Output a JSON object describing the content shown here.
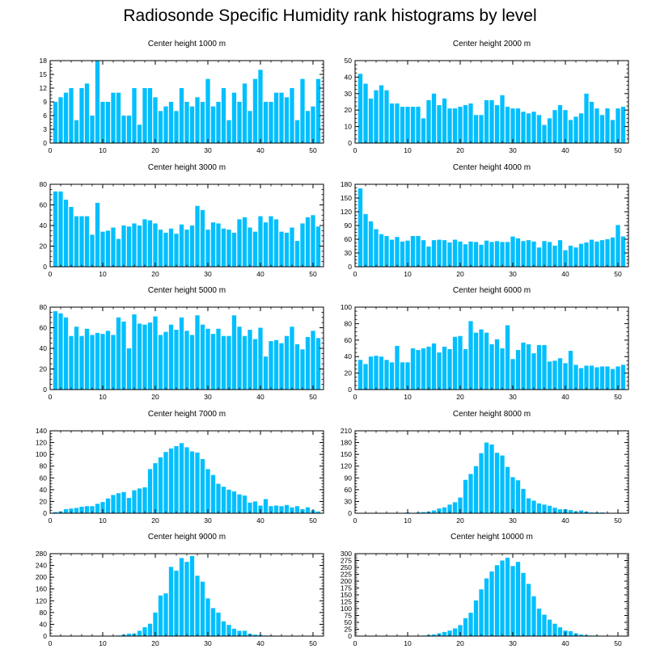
{
  "title": "Radiosonde Specific Humidity rank histograms by level",
  "colors": {
    "bar": "#00BFFF",
    "axis": "#000000"
  },
  "chart_data": [
    {
      "type": "bar",
      "title": "Center height 1000 m",
      "xlim": [
        0,
        52
      ],
      "xticks": [
        0,
        10,
        20,
        30,
        40,
        50
      ],
      "ylim": [
        0,
        18
      ],
      "yticks": [
        0,
        3,
        6,
        9,
        12,
        15,
        18
      ],
      "values": [
        9,
        10,
        11,
        12,
        5,
        12,
        13,
        6,
        18,
        9,
        9,
        11,
        11,
        6,
        6,
        12,
        4,
        12,
        12,
        10,
        7,
        8,
        9,
        7,
        12,
        9,
        8,
        10,
        9,
        14,
        8,
        9,
        12,
        5,
        11,
        9,
        13,
        7,
        14,
        16,
        9,
        9,
        11,
        11,
        10,
        12,
        5,
        14,
        7,
        8,
        14
      ]
    },
    {
      "type": "bar",
      "title": "Center height 2000 m",
      "xlim": [
        0,
        52
      ],
      "xticks": [
        0,
        10,
        20,
        30,
        40,
        50
      ],
      "ylim": [
        0,
        50
      ],
      "yticks": [
        0,
        10,
        20,
        30,
        40,
        50
      ],
      "values": [
        42,
        36,
        27,
        32,
        35,
        32,
        24,
        24,
        22,
        22,
        22,
        22,
        15,
        26,
        30,
        23,
        27,
        21,
        21,
        22,
        23,
        24,
        17,
        17,
        26,
        26,
        23,
        29,
        22,
        21,
        21,
        19,
        18,
        19,
        17,
        11,
        15,
        20,
        23,
        20,
        14,
        16,
        18,
        30,
        25,
        21,
        17,
        21,
        14,
        21,
        22
      ]
    },
    {
      "type": "bar",
      "title": "Center height 3000 m",
      "xlim": [
        0,
        52
      ],
      "xticks": [
        0,
        10,
        20,
        30,
        40,
        50
      ],
      "ylim": [
        0,
        80
      ],
      "yticks": [
        0,
        20,
        40,
        60,
        80
      ],
      "values": [
        73,
        73,
        65,
        58,
        49,
        49,
        49,
        31,
        62,
        34,
        35,
        38,
        27,
        40,
        39,
        42,
        40,
        46,
        45,
        42,
        36,
        33,
        37,
        32,
        41,
        36,
        40,
        59,
        55,
        36,
        43,
        42,
        37,
        36,
        33,
        46,
        48,
        38,
        34,
        49,
        43,
        49,
        46,
        34,
        33,
        38,
        25,
        42,
        48,
        50,
        39
      ]
    },
    {
      "type": "bar",
      "title": "Center height 4000 m",
      "xlim": [
        0,
        52
      ],
      "xticks": [
        0,
        10,
        20,
        30,
        40,
        50
      ],
      "ylim": [
        0,
        180
      ],
      "yticks": [
        0,
        30,
        60,
        90,
        120,
        150,
        180
      ],
      "values": [
        171,
        115,
        99,
        82,
        71,
        67,
        59,
        65,
        55,
        57,
        67,
        67,
        58,
        44,
        58,
        59,
        58,
        53,
        59,
        55,
        49,
        55,
        54,
        48,
        57,
        54,
        56,
        54,
        54,
        66,
        62,
        56,
        58,
        55,
        42,
        56,
        54,
        46,
        58,
        36,
        46,
        42,
        50,
        53,
        59,
        55,
        58,
        60,
        64,
        91,
        66
      ]
    },
    {
      "type": "bar",
      "title": "Center height 5000 m",
      "xlim": [
        0,
        52
      ],
      "xticks": [
        0,
        10,
        20,
        30,
        40,
        50
      ],
      "ylim": [
        0,
        80
      ],
      "yticks": [
        0,
        20,
        40,
        60,
        80
      ],
      "values": [
        76,
        74,
        70,
        52,
        61,
        52,
        59,
        53,
        55,
        54,
        57,
        53,
        70,
        66,
        40,
        73,
        64,
        63,
        65,
        71,
        53,
        56,
        63,
        58,
        70,
        57,
        53,
        72,
        63,
        59,
        54,
        59,
        52,
        52,
        72,
        61,
        52,
        58,
        49,
        60,
        32,
        47,
        48,
        45,
        52,
        61,
        44,
        39,
        51,
        57,
        50
      ]
    },
    {
      "type": "bar",
      "title": "Center height 6000 m",
      "xlim": [
        0,
        52
      ],
      "xticks": [
        0,
        10,
        20,
        30,
        40,
        50
      ],
      "ylim": [
        0,
        100
      ],
      "yticks": [
        0,
        20,
        40,
        60,
        80,
        100
      ],
      "values": [
        36,
        31,
        40,
        41,
        40,
        36,
        33,
        53,
        33,
        33,
        50,
        48,
        50,
        52,
        56,
        45,
        52,
        49,
        64,
        65,
        49,
        83,
        69,
        73,
        69,
        55,
        61,
        50,
        78,
        37,
        48,
        57,
        55,
        44,
        54,
        54,
        34,
        35,
        38,
        32,
        47,
        30,
        26,
        29,
        29,
        27,
        28,
        28,
        25,
        28,
        30
      ]
    },
    {
      "type": "bar",
      "title": "Center height 7000 m",
      "xlim": [
        0,
        52
      ],
      "xticks": [
        0,
        10,
        20,
        30,
        40,
        50
      ],
      "ylim": [
        0,
        140
      ],
      "yticks": [
        0,
        20,
        40,
        60,
        80,
        100,
        120,
        140
      ],
      "values": [
        2,
        3,
        7,
        8,
        9,
        11,
        12,
        12,
        16,
        19,
        25,
        31,
        34,
        36,
        26,
        39,
        42,
        44,
        75,
        85,
        95,
        104,
        110,
        114,
        119,
        112,
        105,
        103,
        92,
        75,
        65,
        50,
        45,
        40,
        37,
        32,
        30,
        18,
        20,
        13,
        24,
        12,
        13,
        12,
        14,
        10,
        12,
        7,
        10,
        5,
        3
      ]
    },
    {
      "type": "bar",
      "title": "Center height 8000 m",
      "xlim": [
        0,
        52
      ],
      "xticks": [
        0,
        10,
        20,
        30,
        40,
        50
      ],
      "ylim": [
        0,
        210
      ],
      "yticks": [
        0,
        30,
        60,
        90,
        120,
        150,
        180,
        210
      ],
      "values": [
        0,
        0,
        0,
        0,
        0,
        0,
        0,
        0,
        0,
        2,
        0,
        2,
        3,
        4,
        7,
        12,
        15,
        22,
        28,
        40,
        85,
        100,
        120,
        153,
        180,
        175,
        154,
        147,
        118,
        92,
        84,
        62,
        38,
        32,
        25,
        22,
        19,
        14,
        10,
        10,
        8,
        5,
        7,
        4,
        2,
        2,
        2,
        1,
        1,
        0,
        1
      ]
    },
    {
      "type": "bar",
      "title": "Center height 9000 m",
      "xlim": [
        0,
        52
      ],
      "xticks": [
        0,
        10,
        20,
        30,
        40,
        50
      ],
      "ylim": [
        0,
        280
      ],
      "yticks": [
        0,
        40,
        80,
        120,
        160,
        200,
        240,
        280
      ],
      "values": [
        0,
        0,
        0,
        0,
        0,
        0,
        0,
        0,
        0,
        0,
        0,
        1,
        2,
        5,
        8,
        9,
        18,
        30,
        42,
        80,
        138,
        145,
        235,
        222,
        265,
        252,
        272,
        205,
        185,
        128,
        95,
        80,
        50,
        38,
        25,
        18,
        18,
        8,
        5,
        4,
        2,
        2,
        1,
        1,
        0,
        0,
        0,
        0,
        0,
        0,
        0
      ]
    },
    {
      "type": "bar",
      "title": "Center height 10000 m",
      "xlim": [
        0,
        52
      ],
      "xticks": [
        0,
        10,
        20,
        30,
        40,
        50
      ],
      "ylim": [
        0,
        300
      ],
      "yticks": [
        0,
        25,
        50,
        75,
        100,
        125,
        150,
        175,
        200,
        225,
        250,
        275,
        300
      ],
      "values": [
        0,
        0,
        0,
        0,
        0,
        0,
        0,
        0,
        0,
        0,
        0,
        0,
        2,
        4,
        6,
        10,
        15,
        20,
        28,
        40,
        65,
        85,
        130,
        170,
        210,
        235,
        258,
        275,
        285,
        255,
        270,
        230,
        190,
        145,
        100,
        78,
        60,
        45,
        32,
        20,
        18,
        10,
        6,
        3,
        2,
        2,
        1,
        1,
        0,
        0,
        1
      ]
    }
  ]
}
